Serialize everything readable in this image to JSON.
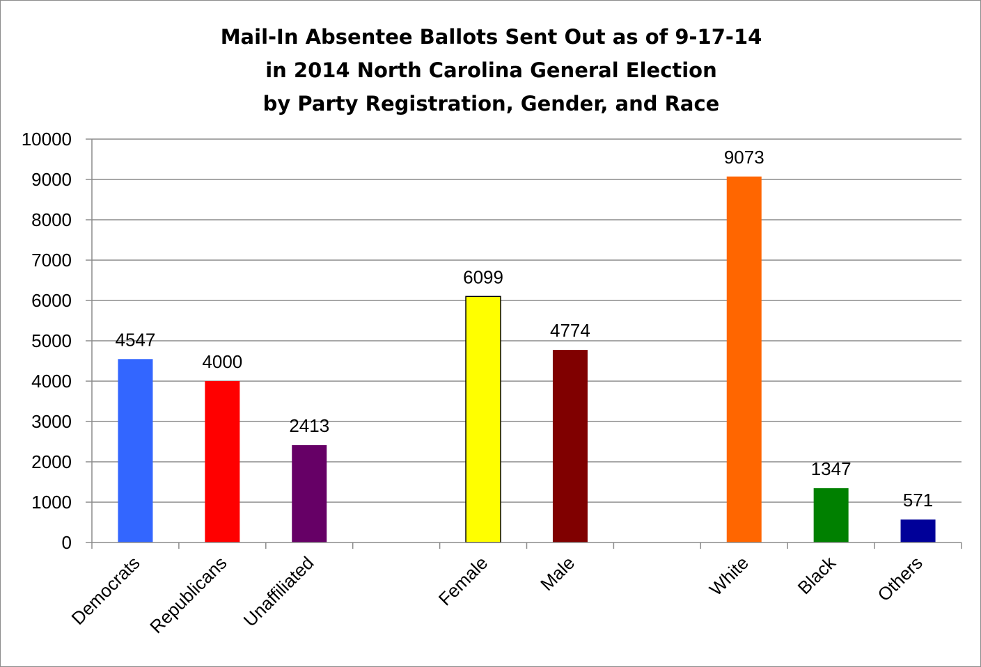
{
  "chart_data": {
    "type": "bar",
    "title": [
      "Mail-In Absentee Ballots Sent Out as of 9-17-14",
      "in 2014 North Carolina General Election",
      "by Party Registration, Gender, and Race"
    ],
    "xlabel": "",
    "ylabel": "",
    "ylim": [
      0,
      10000
    ],
    "yticks": [
      0,
      1000,
      2000,
      3000,
      4000,
      5000,
      6000,
      7000,
      8000,
      9000,
      10000
    ],
    "grid": true,
    "legend": "none",
    "slots": [
      "Democrats",
      "Republicans",
      "Unaffiliated",
      "",
      "Female",
      "Male",
      "",
      "White",
      "Black",
      "Others"
    ],
    "categories": [
      "Democrats",
      "Republicans",
      "Unaffiliated",
      "Female",
      "Male",
      "White",
      "Black",
      "Others"
    ],
    "values": [
      4547,
      4000,
      2413,
      6099,
      4774,
      9073,
      1347,
      571
    ],
    "colors": [
      "#3366ff",
      "#ff0000",
      "#660066",
      "#ffff00",
      "#800000",
      "#ff6600",
      "#008000",
      "#000099"
    ],
    "data_labels": [
      "4547",
      "4000",
      "2413",
      "6099",
      "4774",
      "9073",
      "1347",
      "571"
    ]
  }
}
